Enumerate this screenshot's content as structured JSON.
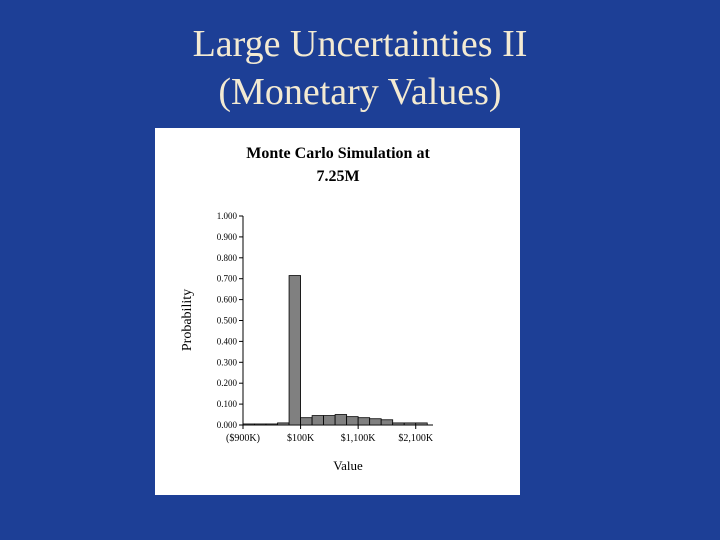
{
  "slide_title": [
    "Large Uncertainties II",
    "(Monetary Values)"
  ],
  "chart_data": {
    "type": "histogram",
    "title": [
      "Monte Carlo Simulation at",
      "7.25M"
    ],
    "y_label": "Probability",
    "x_label": "Value",
    "bins": [
      -900000,
      -700000,
      -500000,
      -300000,
      -100000,
      100000,
      300000,
      500000,
      700000,
      900000,
      1100000,
      1300000,
      1500000,
      1700000,
      1900000,
      2100000,
      2300000
    ],
    "values": [
      0.005,
      0.005,
      0.005,
      0.01,
      0.715,
      0.035,
      0.045,
      0.045,
      0.05,
      0.04,
      0.035,
      0.03,
      0.025,
      0.01,
      0.01,
      0.01
    ],
    "color": "#808080",
    "xlim": [
      -900000,
      2400000
    ],
    "xticks": [
      {
        "value": -900000,
        "label": "($900K)"
      },
      {
        "value": 100000,
        "label": "$100K"
      },
      {
        "value": 1100000,
        "label": "$1,100K"
      },
      {
        "value": 2100000,
        "label": "$2,100K"
      }
    ],
    "ylim": [
      0,
      1
    ],
    "yticks": [
      {
        "value": 0,
        "label": "0.000"
      },
      {
        "value": 0.1,
        "label": "0.100"
      },
      {
        "value": 0.2,
        "label": "0.200"
      },
      {
        "value": 0.3,
        "label": "0.300"
      },
      {
        "value": 0.4,
        "label": "0.400"
      },
      {
        "value": 0.5,
        "label": "0.500"
      },
      {
        "value": 0.6,
        "label": "0.600"
      },
      {
        "value": 0.7,
        "label": "0.700"
      },
      {
        "value": 0.8,
        "label": "0.800"
      },
      {
        "value": 0.9,
        "label": "0.900"
      },
      {
        "value": 1,
        "label": "1.000"
      }
    ]
  }
}
